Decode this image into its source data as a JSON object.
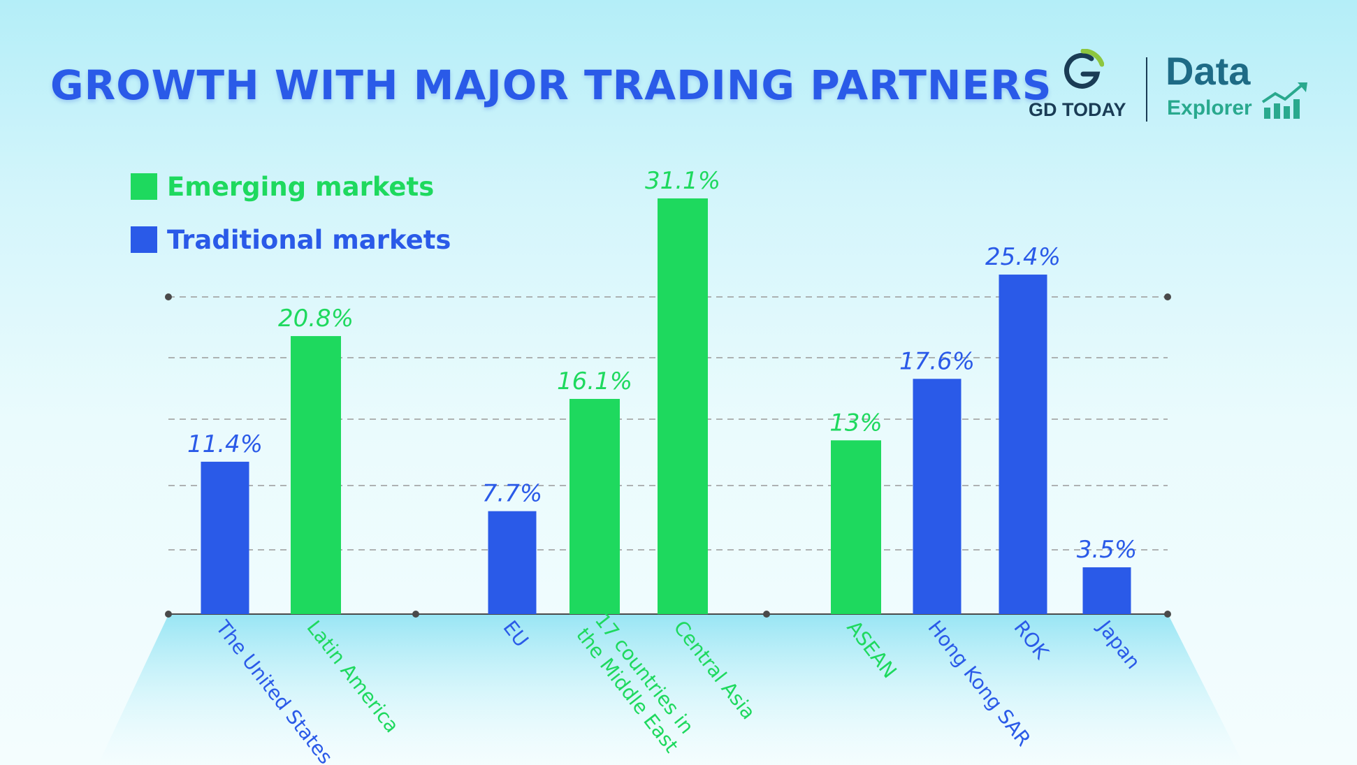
{
  "page": {
    "title": "GROWTH WITH MAJOR TRADING PARTNERS"
  },
  "branding": {
    "gd_today": "GD TODAY",
    "data_word": "Data",
    "explorer_word": "Explorer"
  },
  "colors": {
    "emerging": "#1ed95e",
    "traditional": "#2a5ae8"
  },
  "legend": [
    {
      "label": "Emerging markets",
      "color": "#1ed95e"
    },
    {
      "label": "Traditional markets",
      "color": "#2a5ae8"
    }
  ],
  "chart_data": {
    "type": "bar",
    "title": "GROWTH WITH MAJOR TRADING PARTNERS",
    "xlabel": "",
    "ylabel": "",
    "ylim": [
      0,
      31.1
    ],
    "grid": true,
    "legend_position": "top-left",
    "unit": "%",
    "bars": [
      {
        "category": "The United States",
        "value": 11.4,
        "label": "11.4%",
        "group": "Traditional markets"
      },
      {
        "category": "Latin America",
        "value": 20.8,
        "label": "20.8%",
        "group": "Emerging markets"
      },
      {
        "category": "EU",
        "value": 7.7,
        "label": "7.7%",
        "group": "Traditional markets"
      },
      {
        "category": "17 countries in the Middle East",
        "value": 16.1,
        "label": "16.1%",
        "group": "Emerging markets"
      },
      {
        "category": "Central Asia",
        "value": 31.1,
        "label": "31.1%",
        "group": "Emerging markets"
      },
      {
        "category": "ASEAN",
        "value": 13,
        "label": "13%",
        "group": "Emerging markets"
      },
      {
        "category": "Hong Kong SAR",
        "value": 17.6,
        "label": "17.6%",
        "group": "Traditional markets"
      },
      {
        "category": "ROK",
        "value": 25.4,
        "label": "25.4%",
        "group": "Traditional markets"
      },
      {
        "category": "Japan",
        "value": 3.5,
        "label": "3.5%",
        "group": "Traditional markets"
      }
    ]
  }
}
